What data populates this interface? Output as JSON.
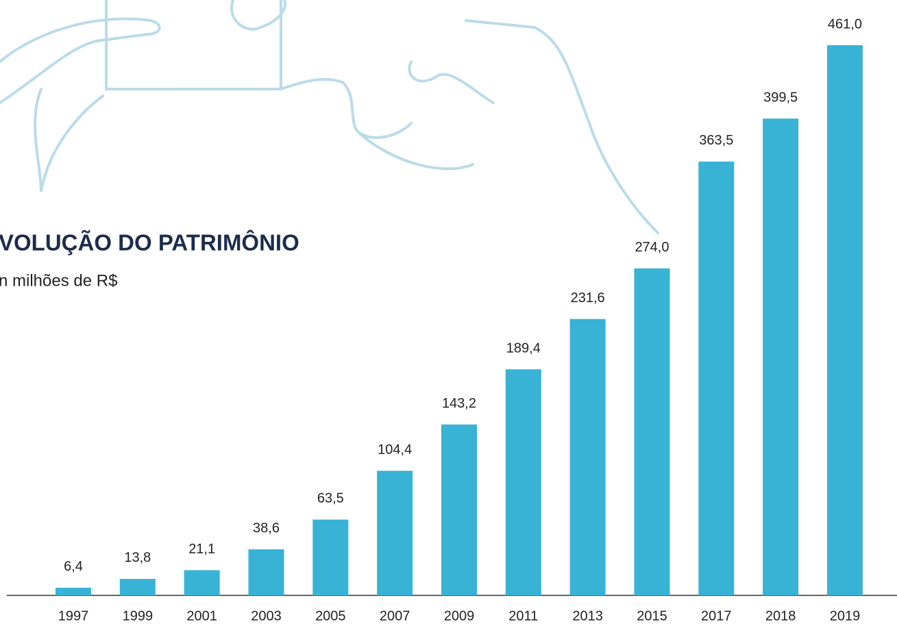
{
  "chart_data": {
    "type": "bar",
    "title": "VOLUÇÃO DO PATRIMÔNIO",
    "subtitle": "n milhões de R$",
    "categories": [
      "1997",
      "1999",
      "2001",
      "2003",
      "2005",
      "2007",
      "2009",
      "2011",
      "2013",
      "2015",
      "2017",
      "2018",
      "2019"
    ],
    "values": [
      6.4,
      13.8,
      21.1,
      38.6,
      63.5,
      104.4,
      143.2,
      189.4,
      231.6,
      274.0,
      363.5,
      399.5,
      461.0
    ],
    "value_labels": [
      "6,4",
      "13,8",
      "21,1",
      "38,6",
      "63,5",
      "104,4",
      "143,2",
      "189,4",
      "231,6",
      "274,0",
      "363,5",
      "399,5",
      "461,0"
    ],
    "color": "#38b2d5"
  }
}
